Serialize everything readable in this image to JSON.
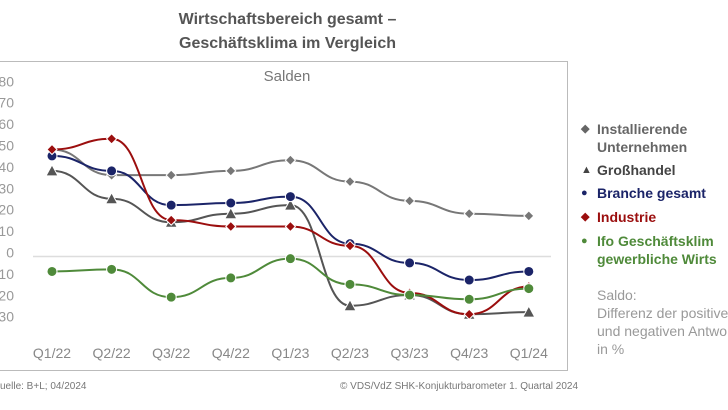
{
  "title_line1": "Wirtschaftsbereich gesamt –",
  "title_line2": "Geschäftsklima im Vergleich",
  "chart_data": {
    "type": "line",
    "title": "Wirtschaftsbereich gesamt – Geschäftsklima im Vergleich",
    "subtitle": "Salden",
    "categories": [
      "Q1/22",
      "Q2/22",
      "Q3/22",
      "Q4/22",
      "Q1/23",
      "Q2/23",
      "Q3/23",
      "Q4/23",
      "Q1/24"
    ],
    "ylim": [
      -30,
      80
    ],
    "yticks": [
      80,
      70,
      60,
      50,
      40,
      30,
      20,
      10,
      0,
      -10,
      -20,
      -30
    ],
    "legend_position": "right",
    "series": [
      {
        "name": "Installierende Unternehmen",
        "color": "#777777",
        "marker": "diamond",
        "values": [
          50,
          38,
          38,
          40,
          45,
          35,
          26,
          20,
          19
        ]
      },
      {
        "name": "Großhandel",
        "color": "#555555",
        "marker": "triangle",
        "values": [
          40,
          27,
          16,
          20,
          24,
          -23,
          -18,
          -27,
          -26
        ]
      },
      {
        "name": "Branche gesamt",
        "color": "#1b2468",
        "marker": "circle",
        "values": [
          47,
          40,
          24,
          25,
          28,
          6,
          -3,
          -11,
          -7
        ]
      },
      {
        "name": "Industrie",
        "color": "#9b0e0e",
        "marker": "diamond",
        "values": [
          50,
          55,
          17,
          14,
          14,
          5,
          -17,
          -27,
          -14
        ]
      },
      {
        "name": "Ifo Geschäftsklima gewerbliche Wirtschaft",
        "legend_lines": [
          "Ifo Geschäftsklim",
          "gewerbliche Wirts"
        ],
        "color": "#4f8a3a",
        "marker": "circle",
        "values": [
          -7,
          -6,
          -19,
          -10,
          -1,
          -13,
          -18,
          -20,
          -15
        ]
      }
    ]
  },
  "legend_lines": {
    "inst1": "Installierende",
    "inst2": "Unternehmen",
    "gross": "Großhandel",
    "branche": "Branche gesamt",
    "industrie": "Industrie",
    "ifo1": "Ifo Geschäftsklim",
    "ifo2": "gewerbliche Wirts"
  },
  "note": [
    "Saldo:",
    "Differenz der positive",
    "und negativen Antwo",
    "in %"
  ],
  "footer_left": "uelle: B+L; 04/2024",
  "footer_right": "© VDS/VdZ SHK-Konjukturbarometer 1. Quartal 2024"
}
